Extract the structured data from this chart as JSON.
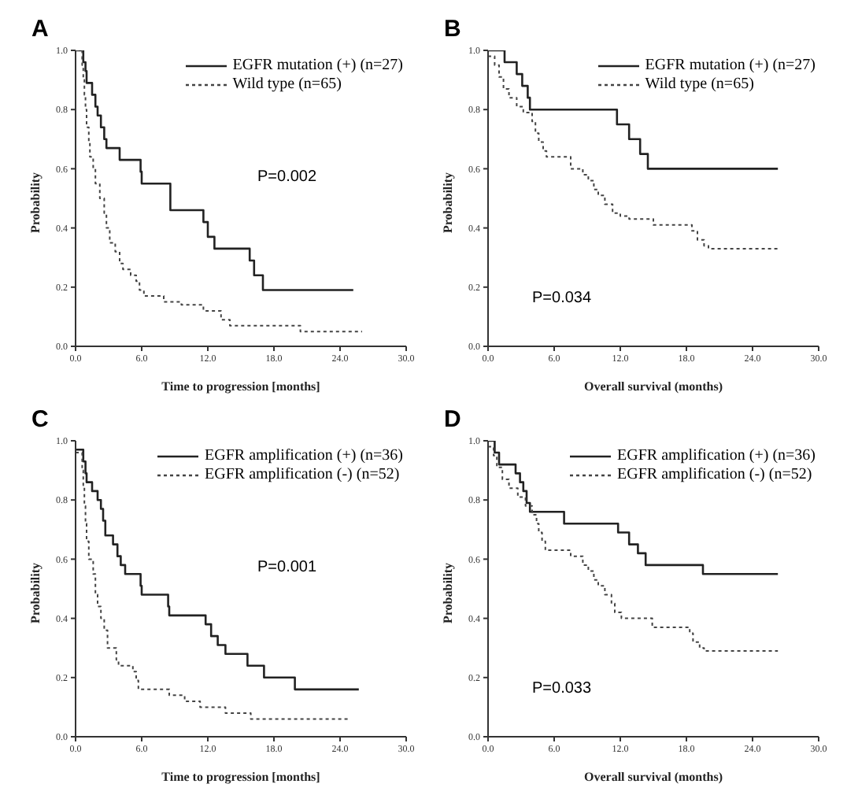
{
  "chart_data": [
    {
      "type": "step",
      "title": "A",
      "xlabel": "Time to progression [months]",
      "ylabel": "Probability",
      "annotations": [
        "P=0.002"
      ],
      "legend": "top right",
      "xlim": [
        0,
        30
      ],
      "xticks": [
        {
          "value": 0,
          "label": "0.0"
        },
        {
          "value": 6,
          "label": "6.0"
        },
        {
          "value": 12,
          "label": "12.0"
        },
        {
          "value": 18,
          "label": "18.0"
        },
        {
          "value": 24,
          "label": "24.0"
        },
        {
          "value": 30,
          "label": "30.0"
        }
      ],
      "ylim": [
        0,
        1
      ],
      "yticks": [
        {
          "value": 0,
          "label": "0.0"
        },
        {
          "value": 0.2,
          "label": "0.2"
        },
        {
          "value": 0.4,
          "label": "0.4"
        },
        {
          "value": 0.6,
          "label": "0.6"
        },
        {
          "value": 0.8,
          "label": "0.8"
        },
        {
          "value": 1,
          "label": "1.0"
        }
      ],
      "series": [
        {
          "name": "EGFR mutation (+) (n=27)",
          "color": "#222222",
          "line_style": "solid",
          "x": [
            0,
            0.7,
            0.9,
            1.0,
            1.5,
            1.8,
            2.0,
            2.3,
            2.6,
            2.8,
            4.0,
            5.9,
            6.0,
            8.6,
            11.6,
            12.0,
            12.6,
            15.8,
            16.2,
            17.0,
            25.2
          ],
          "values": [
            1.0,
            0.96,
            0.93,
            0.89,
            0.85,
            0.81,
            0.78,
            0.74,
            0.7,
            0.67,
            0.63,
            0.59,
            0.55,
            0.46,
            0.42,
            0.37,
            0.33,
            0.29,
            0.24,
            0.19,
            0.19
          ]
        },
        {
          "name": "Wild type (n=65)",
          "color": "#444444",
          "line_style": "dotted",
          "x": [
            0,
            0.6,
            0.7,
            0.8,
            0.9,
            1.0,
            1.2,
            1.3,
            1.6,
            1.8,
            2.2,
            2.6,
            2.8,
            3.1,
            3.6,
            4.0,
            4.3,
            5.0,
            5.5,
            5.8,
            6.2,
            8.0,
            9.6,
            11.6,
            13.2,
            14.0,
            20.4,
            26.0
          ],
          "values": [
            1.0,
            0.95,
            0.9,
            0.85,
            0.8,
            0.74,
            0.69,
            0.64,
            0.6,
            0.55,
            0.5,
            0.45,
            0.4,
            0.35,
            0.32,
            0.28,
            0.26,
            0.24,
            0.22,
            0.19,
            0.17,
            0.15,
            0.14,
            0.12,
            0.09,
            0.07,
            0.05,
            0.05
          ]
        }
      ]
    },
    {
      "type": "step",
      "title": "B",
      "xlabel": "Overall survival (months)",
      "ylabel": "Probability",
      "annotations": [
        "P=0.034"
      ],
      "legend": "top right",
      "xlim": [
        0,
        30
      ],
      "xticks": [
        {
          "value": 0,
          "label": "0.0"
        },
        {
          "value": 6,
          "label": "6.0"
        },
        {
          "value": 12,
          "label": "12.0"
        },
        {
          "value": 18,
          "label": "18.0"
        },
        {
          "value": 24,
          "label": "24.0"
        },
        {
          "value": 30,
          "label": "30.0"
        }
      ],
      "ylim": [
        0,
        1
      ],
      "yticks": [
        {
          "value": 0,
          "label": "0.0"
        },
        {
          "value": 0.2,
          "label": "0.2"
        },
        {
          "value": 0.4,
          "label": "0.4"
        },
        {
          "value": 0.6,
          "label": "0.6"
        },
        {
          "value": 0.8,
          "label": "0.8"
        },
        {
          "value": 1,
          "label": "1.0"
        }
      ],
      "series": [
        {
          "name": "EGFR mutation (+) (n=27)",
          "color": "#222222",
          "line_style": "solid",
          "x": [
            0,
            1.5,
            2.6,
            3.1,
            3.6,
            3.8,
            11.7,
            12.8,
            13.8,
            14.5,
            26.3
          ],
          "values": [
            1.0,
            0.96,
            0.92,
            0.88,
            0.84,
            0.8,
            0.75,
            0.7,
            0.65,
            0.6,
            0.6
          ]
        },
        {
          "name": "Wild type (n=65)",
          "color": "#444444",
          "line_style": "dotted",
          "x": [
            0,
            0.6,
            1.0,
            1.4,
            1.9,
            2.6,
            3.2,
            4.0,
            4.3,
            4.6,
            5.0,
            5.3,
            7.5,
            8.6,
            9.1,
            9.6,
            10.0,
            10.6,
            11.3,
            12.0,
            12.8,
            15.0,
            18.5,
            19.0,
            19.6,
            20.0,
            26.4
          ],
          "values": [
            0.98,
            0.95,
            0.91,
            0.87,
            0.84,
            0.81,
            0.79,
            0.76,
            0.72,
            0.69,
            0.66,
            0.64,
            0.6,
            0.58,
            0.56,
            0.53,
            0.51,
            0.48,
            0.45,
            0.44,
            0.43,
            0.41,
            0.39,
            0.36,
            0.34,
            0.33,
            0.33
          ]
        }
      ]
    },
    {
      "type": "step",
      "title": "C",
      "xlabel": "Time to progression [months]",
      "ylabel": "Probability",
      "annotations": [
        "P=0.001"
      ],
      "legend": "top right",
      "xlim": [
        0,
        30
      ],
      "xticks": [
        {
          "value": 0,
          "label": "0.0"
        },
        {
          "value": 6,
          "label": "6.0"
        },
        {
          "value": 12,
          "label": "12.0"
        },
        {
          "value": 18,
          "label": "18.0"
        },
        {
          "value": 24,
          "label": "24.0"
        },
        {
          "value": 30,
          "label": "30.0"
        }
      ],
      "ylim": [
        0,
        1
      ],
      "yticks": [
        {
          "value": 0,
          "label": "0.0"
        },
        {
          "value": 0.2,
          "label": "0.2"
        },
        {
          "value": 0.4,
          "label": "0.4"
        },
        {
          "value": 0.6,
          "label": "0.6"
        },
        {
          "value": 0.8,
          "label": "0.8"
        },
        {
          "value": 1,
          "label": "1.0"
        }
      ],
      "series": [
        {
          "name": "EGFR amplification (+) (n=36)",
          "color": "#222222",
          "line_style": "solid",
          "x": [
            0,
            0.7,
            0.9,
            1.0,
            1.5,
            2.0,
            2.3,
            2.5,
            2.7,
            3.4,
            3.8,
            4.1,
            4.5,
            5.9,
            6.0,
            8.4,
            8.5,
            11.8,
            12.3,
            12.9,
            13.6,
            15.6,
            17.1,
            19.9,
            25.7
          ],
          "values": [
            0.97,
            0.93,
            0.89,
            0.86,
            0.83,
            0.8,
            0.77,
            0.73,
            0.68,
            0.65,
            0.61,
            0.58,
            0.55,
            0.51,
            0.48,
            0.44,
            0.41,
            0.38,
            0.34,
            0.31,
            0.28,
            0.24,
            0.2,
            0.16,
            0.16
          ]
        },
        {
          "name": "EGFR amplification (-) (n=52)",
          "color": "#444444",
          "line_style": "dotted",
          "x": [
            0,
            0.6,
            0.7,
            0.8,
            0.9,
            1.0,
            1.2,
            1.6,
            1.8,
            2.0,
            2.3,
            2.6,
            2.9,
            3.7,
            3.9,
            5.2,
            5.5,
            5.7,
            8.5,
            9.9,
            11.3,
            13.6,
            15.9,
            24.9
          ],
          "values": [
            0.96,
            0.9,
            0.85,
            0.78,
            0.72,
            0.66,
            0.6,
            0.55,
            0.48,
            0.44,
            0.4,
            0.36,
            0.3,
            0.26,
            0.24,
            0.22,
            0.19,
            0.16,
            0.14,
            0.12,
            0.1,
            0.08,
            0.06,
            0.06
          ]
        }
      ]
    },
    {
      "type": "step",
      "title": "D",
      "xlabel": "Overall survival (months)",
      "ylabel": "Probability",
      "annotations": [
        "P=0.033"
      ],
      "legend": "top right",
      "xlim": [
        0,
        30
      ],
      "xticks": [
        {
          "value": 0,
          "label": "0.0"
        },
        {
          "value": 6,
          "label": "6.0"
        },
        {
          "value": 12,
          "label": "12.0"
        },
        {
          "value": 18,
          "label": "18.0"
        },
        {
          "value": 24,
          "label": "24.0"
        },
        {
          "value": 30,
          "label": "30.0"
        }
      ],
      "ylim": [
        0,
        1
      ],
      "yticks": [
        {
          "value": 0,
          "label": "0.0"
        },
        {
          "value": 0.2,
          "label": "0.2"
        },
        {
          "value": 0.4,
          "label": "0.4"
        },
        {
          "value": 0.6,
          "label": "0.6"
        },
        {
          "value": 0.8,
          "label": "0.8"
        },
        {
          "value": 1,
          "label": "1.0"
        }
      ],
      "series": [
        {
          "name": "EGFR amplification (+) (n=36)",
          "color": "#222222",
          "line_style": "solid",
          "x": [
            0,
            0.6,
            1.0,
            2.5,
            2.9,
            3.2,
            3.5,
            3.8,
            6.9,
            11.8,
            12.8,
            13.6,
            14.3,
            19.5,
            26.3
          ],
          "values": [
            1.0,
            0.96,
            0.92,
            0.89,
            0.86,
            0.83,
            0.79,
            0.76,
            0.72,
            0.69,
            0.65,
            0.62,
            0.58,
            0.55,
            0.55
          ]
        },
        {
          "name": "EGFR amplification (-) (n=52)",
          "color": "#444444",
          "line_style": "dotted",
          "x": [
            0,
            0.5,
            0.8,
            1.3,
            1.9,
            2.7,
            3.4,
            4.0,
            4.4,
            4.6,
            4.9,
            5.2,
            7.5,
            8.6,
            9.1,
            9.6,
            10.0,
            10.6,
            11.2,
            11.5,
            12.1,
            14.9,
            18.3,
            18.6,
            19.2,
            19.6,
            26.3
          ],
          "values": [
            0.98,
            0.95,
            0.91,
            0.87,
            0.84,
            0.81,
            0.78,
            0.75,
            0.72,
            0.69,
            0.66,
            0.63,
            0.61,
            0.58,
            0.56,
            0.53,
            0.51,
            0.48,
            0.45,
            0.42,
            0.4,
            0.37,
            0.35,
            0.32,
            0.3,
            0.29,
            0.29
          ]
        }
      ]
    }
  ]
}
